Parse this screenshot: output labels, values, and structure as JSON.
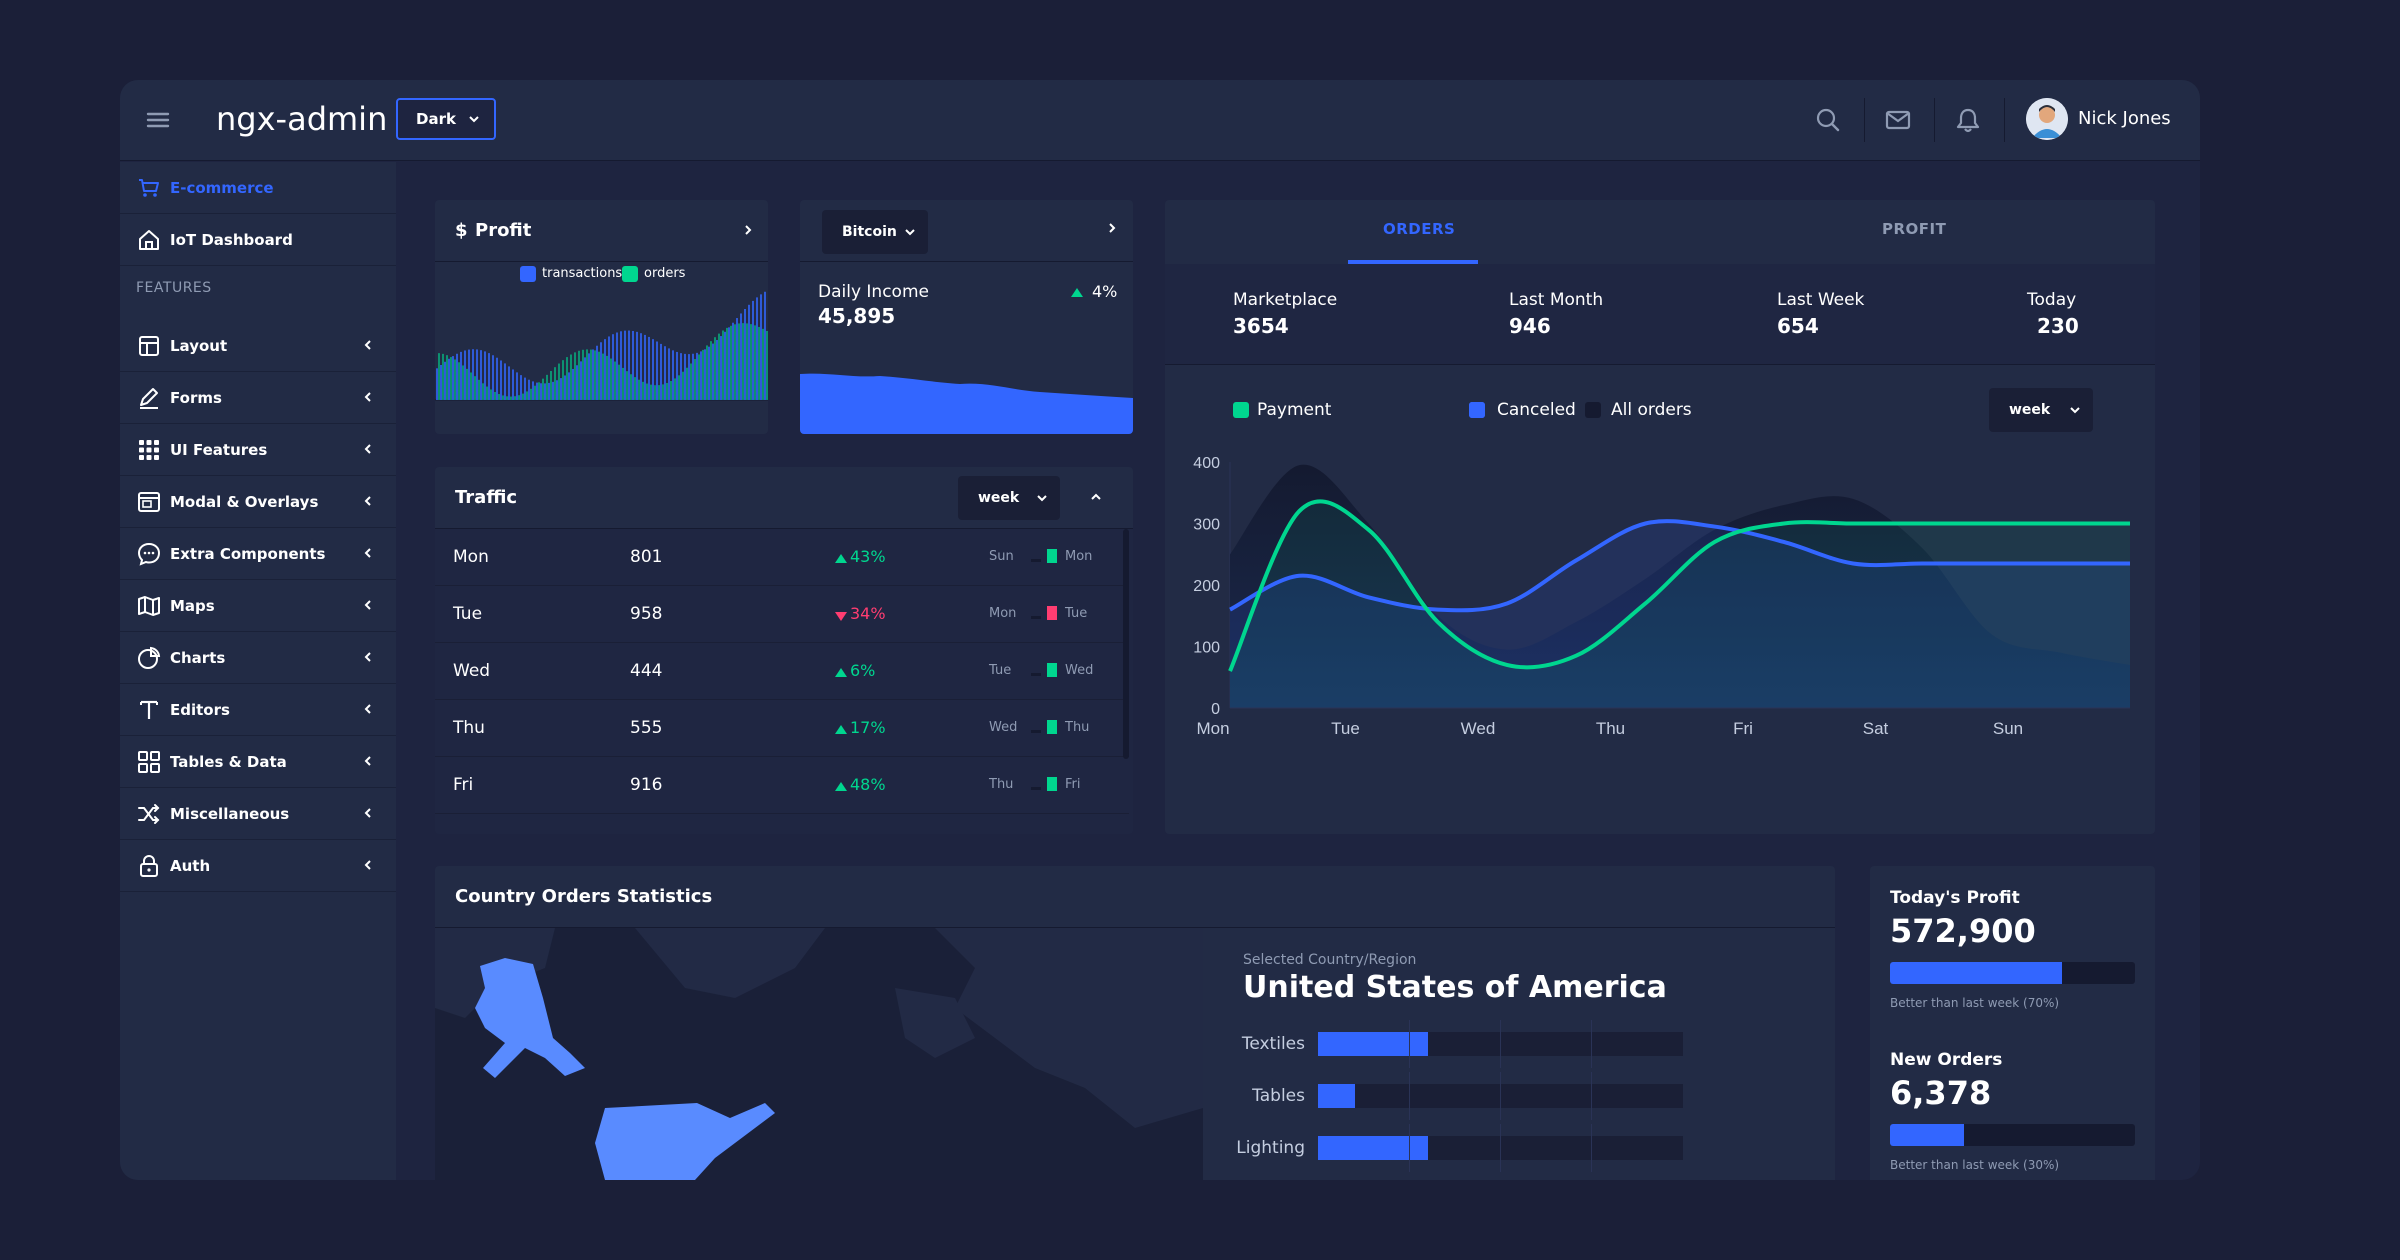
{
  "header": {
    "brand": "ngx-admin",
    "theme": "Dark",
    "user_name": "Nick Jones",
    "icons": [
      "menu-icon",
      "search-icon",
      "mail-icon",
      "bell-icon"
    ]
  },
  "sidebar": {
    "items": [
      {
        "label": "E-commerce",
        "icon": "cart-icon",
        "active": true
      },
      {
        "label": "IoT Dashboard",
        "icon": "home-icon"
      }
    ],
    "section_label": "FEATURES",
    "features": [
      {
        "label": "Layout",
        "icon": "layout-icon"
      },
      {
        "label": "Forms",
        "icon": "edit-icon"
      },
      {
        "label": "UI Features",
        "icon": "keypad-icon"
      },
      {
        "label": "Modal & Overlays",
        "icon": "browser-icon"
      },
      {
        "label": "Extra Components",
        "icon": "message-icon"
      },
      {
        "label": "Maps",
        "icon": "map-icon"
      },
      {
        "label": "Charts",
        "icon": "pie-chart-icon"
      },
      {
        "label": "Editors",
        "icon": "text-icon"
      },
      {
        "label": "Tables & Data",
        "icon": "grid-icon"
      },
      {
        "label": "Miscellaneous",
        "icon": "shuffle-icon"
      },
      {
        "label": "Auth",
        "icon": "lock-icon"
      }
    ]
  },
  "profit_card": {
    "currency": "$",
    "title": "Profit",
    "legend": [
      "transactions",
      "orders"
    ],
    "colors": {
      "transactions": "#3366ff",
      "orders": "#00d68f"
    }
  },
  "bitcoin_card": {
    "currency_select": "Bitcoin",
    "label": "Daily Income",
    "value": "45,895",
    "change": "4%"
  },
  "traffic_card": {
    "title": "Traffic",
    "period": "week",
    "rows": [
      {
        "day": "Mon",
        "value": "801",
        "delta": "43%",
        "trend": "up",
        "prev": "Sun",
        "cur": "Mon"
      },
      {
        "day": "Tue",
        "value": "958",
        "delta": "34%",
        "trend": "down",
        "prev": "Mon",
        "cur": "Tue"
      },
      {
        "day": "Wed",
        "value": "444",
        "delta": "6%",
        "trend": "up",
        "prev": "Tue",
        "cur": "Wed"
      },
      {
        "day": "Thu",
        "value": "555",
        "delta": "17%",
        "trend": "up",
        "prev": "Wed",
        "cur": "Thu"
      },
      {
        "day": "Fri",
        "value": "916",
        "delta": "48%",
        "trend": "up",
        "prev": "Thu",
        "cur": "Fri"
      }
    ]
  },
  "orders_card": {
    "tabs": [
      "ORDERS",
      "PROFIT"
    ],
    "summary": [
      {
        "label": "Marketplace",
        "value": "3654"
      },
      {
        "label": "Last Month",
        "value": "946"
      },
      {
        "label": "Last Week",
        "value": "654"
      },
      {
        "label": "Today",
        "value": "230"
      }
    ],
    "period": "week"
  },
  "chart_data": {
    "type": "line",
    "categories": [
      "Mon",
      "Tue",
      "Wed",
      "Thu",
      "Fri",
      "Sat",
      "Sun"
    ],
    "ylim": [
      0,
      400
    ],
    "yticks": [
      "0",
      "100",
      "200",
      "300",
      "400"
    ],
    "x": [
      0,
      0.5,
      1,
      1.5,
      2,
      2.5,
      3,
      3.5,
      4,
      4.5,
      5,
      5.5,
      6,
      6.5
    ],
    "series": [
      {
        "name": "Payment",
        "color": "#00d68f",
        "values": [
          60,
          320,
          290,
          140,
          70,
          85,
          170,
          270,
          300,
          300,
          300,
          300,
          300,
          300
        ]
      },
      {
        "name": "Canceled",
        "color": "#3366ff",
        "values": [
          160,
          215,
          180,
          160,
          170,
          240,
          300,
          295,
          270,
          235,
          235,
          235,
          235,
          235
        ]
      },
      {
        "name": "All orders",
        "color": "#151a30",
        "values": [
          250,
          395,
          300,
          150,
          95,
          140,
          210,
          290,
          330,
          340,
          260,
          120,
          90,
          70
        ]
      }
    ],
    "legend_position": "top-left"
  },
  "country_card": {
    "title": "Country Orders Statistics",
    "selected_label": "Selected Country/Region",
    "country": "United States of America",
    "categories": [
      {
        "label": "Textiles",
        "value": 30
      },
      {
        "label": "Tables",
        "value": 10
      },
      {
        "label": "Lighting",
        "value": 30
      }
    ]
  },
  "progress_card": {
    "items": [
      {
        "title": "Today's Profit",
        "value": "572,900",
        "percent": 70,
        "caption": "Better than last week (70%)"
      },
      {
        "title": "New Orders",
        "value": "6,378",
        "percent": 30,
        "caption": "Better than last week (30%)"
      }
    ]
  }
}
